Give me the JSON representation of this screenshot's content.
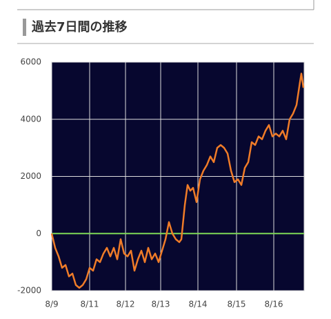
{
  "chart_data": {
    "type": "line",
    "title": "過去7日間の推移",
    "x": [
      0,
      5,
      10,
      15,
      20,
      25,
      30,
      35,
      40,
      45,
      50,
      55,
      60,
      65,
      70,
      75,
      80,
      85,
      90,
      95,
      100,
      105,
      110,
      115,
      120,
      125,
      130,
      135,
      140,
      145,
      150,
      155,
      160,
      165,
      170,
      175,
      180,
      185,
      188,
      193,
      197,
      201,
      205,
      210,
      215,
      220,
      225,
      230,
      235,
      240,
      245,
      250,
      255,
      260,
      265,
      270,
      275,
      280,
      285,
      290,
      295,
      300,
      305,
      310,
      315,
      320,
      325,
      330,
      335,
      340,
      345,
      350,
      355,
      360,
      362,
      365
    ],
    "series": [
      {
        "color": "#f07c28",
        "values": [
          0,
          -500,
          -800,
          -1200,
          -1100,
          -1500,
          -1400,
          -1800,
          -1900,
          -1800,
          -1600,
          -1200,
          -1300,
          -900,
          -1000,
          -700,
          -500,
          -800,
          -500,
          -900,
          -200,
          -700,
          -800,
          -600,
          -1300,
          -900,
          -600,
          -1000,
          -500,
          -900,
          -700,
          -1000,
          -600,
          -200,
          400,
          0,
          -200,
          -300,
          -200,
          1000,
          1700,
          1500,
          1600,
          1100,
          1900,
          2200,
          2400,
          2700,
          2500,
          3000,
          3100,
          3000,
          2800,
          2200,
          1800,
          1900,
          1700,
          2300,
          2500,
          3200,
          3100,
          3400,
          3300,
          3600,
          3800,
          3400,
          3500,
          3400,
          3600,
          3300,
          4000,
          4200,
          4500,
          5300,
          5600,
          5100
        ]
      }
    ],
    "xlim": [
      0,
      366
    ],
    "xticks": [
      {
        "value": 0,
        "label": "8/9"
      },
      {
        "value": 55,
        "label": "8/11"
      },
      {
        "value": 107,
        "label": "8/12"
      },
      {
        "value": 158,
        "label": "8/13"
      },
      {
        "value": 212,
        "label": "8/14"
      },
      {
        "value": 268,
        "label": "8/15"
      },
      {
        "value": 322,
        "label": "8/16"
      }
    ],
    "ylim": [
      -2000,
      6000
    ],
    "yticks": [
      -2000,
      0,
      2000,
      4000,
      6000
    ],
    "zero_line_color": "#7ed957",
    "background": "#07072f",
    "grid": true
  }
}
